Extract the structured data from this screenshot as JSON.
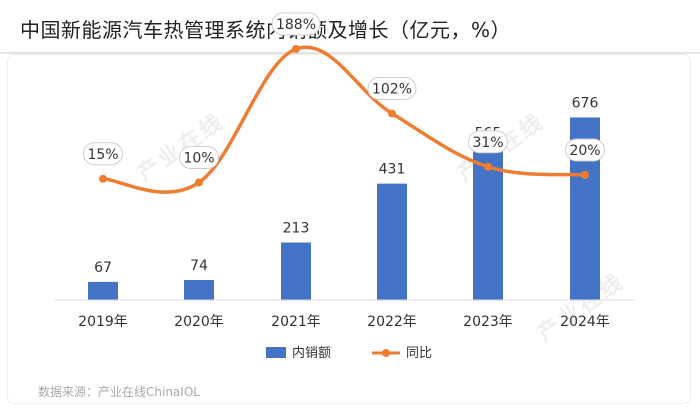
{
  "header": {
    "title": "中国新能源汽车热管理系统内销额及增长（亿元，%）"
  },
  "footer": {
    "source": "数据来源：产业在线ChinaIOL"
  },
  "watermark": {
    "text": "产业在线"
  },
  "chart_data": {
    "type": "bar+line",
    "title": "中国新能源汽车热管理系统内销额及增长（亿元，%）",
    "categories": [
      "2019年",
      "2020年",
      "2021年",
      "2022年",
      "2023年",
      "2024年"
    ],
    "series": [
      {
        "name": "内销额",
        "type": "bar",
        "values": [
          67,
          74,
          213,
          431,
          565,
          676
        ],
        "color": "#4472c4"
      },
      {
        "name": "同比",
        "type": "line",
        "values": [
          15,
          10,
          188,
          102,
          31,
          20
        ],
        "labels": [
          "15%",
          "10%",
          "188%",
          "102%",
          "31%",
          "20%"
        ],
        "color": "#ed7d31"
      }
    ],
    "bar_axis": {
      "min": 0,
      "max": 1000
    },
    "line_axis": {
      "min": -40,
      "max": 200
    },
    "legend": "bottom",
    "grid": false
  }
}
